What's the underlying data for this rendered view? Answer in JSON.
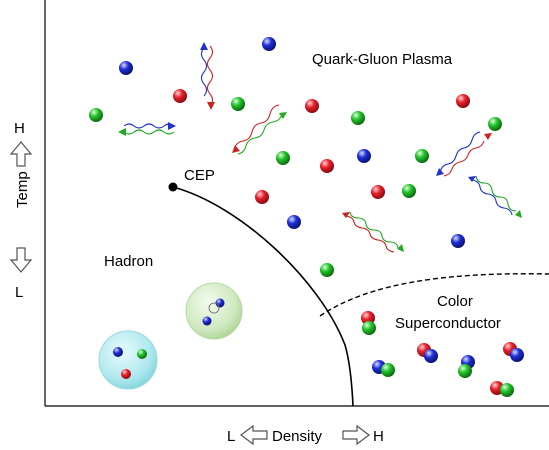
{
  "labels": {
    "qgp": "Quark-Gluon Plasma",
    "cep": "CEP",
    "hadron": "Hadron",
    "color_line1": "Color",
    "color_line2": "Superconductor",
    "temp_axis": "Temp",
    "temp_high": "H",
    "temp_low": "L",
    "density_axis": "Density",
    "density_low": "L",
    "density_high": "H"
  },
  "colors": {
    "quark_red": "#e8202a",
    "quark_green": "#22c32a",
    "quark_blue": "#1f2fd8",
    "boundary": "#000000",
    "hadron_bubble_blue": "#bfeef2",
    "hadron_bubble_green": "#d9efcc"
  },
  "particles": [
    "red",
    "green",
    "blue"
  ]
}
